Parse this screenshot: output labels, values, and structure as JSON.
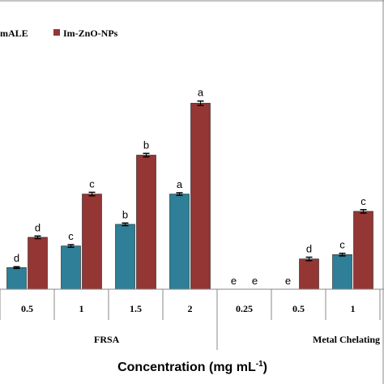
{
  "chart_data": {
    "type": "bar",
    "xlabel": "Concentration (mg mL",
    "xlabel_superscript": "-1",
    "series": [
      {
        "name": "ImALE",
        "legend_visible_text": "mALE",
        "color": "#2e7f97",
        "values": [
          0.5,
          1.0,
          1.5,
          2.2,
          0,
          0,
          0.8
        ],
        "errors": [
          0.02,
          0.03,
          0.03,
          0.03,
          0,
          0,
          0.03
        ],
        "letters": [
          "d",
          "c",
          "b",
          "a",
          "e",
          "e",
          "c"
        ]
      },
      {
        "name": "Im-ZnO-NPs",
        "legend_visible_text": "Im-ZnO-NPs",
        "color": "#943634",
        "values": [
          1.2,
          2.2,
          3.1,
          4.3,
          0,
          0.7,
          1.8
        ],
        "errors": [
          0.03,
          0.04,
          0.04,
          0.05,
          0,
          0.04,
          0.04
        ],
        "letters": [
          "d",
          "c",
          "b",
          "a",
          "e",
          "d",
          "c"
        ]
      }
    ],
    "categories": [
      "0.5",
      "1",
      "1.5",
      "2",
      "0.25",
      "0.5",
      "1"
    ],
    "groups": [
      {
        "label": "FRSA",
        "categories": [
          "0.5",
          "1",
          "1.5",
          "2"
        ]
      },
      {
        "label": "Metal Chelating",
        "categories": [
          "0.25",
          "0.5",
          "1"
        ]
      }
    ],
    "ylim": [
      0,
      5.6
    ]
  }
}
